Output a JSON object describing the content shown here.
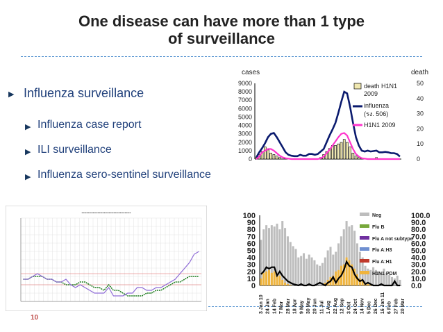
{
  "title": {
    "line1": "One disease can have more than 1 type",
    "line2": "of surveillance"
  },
  "bullets": [
    {
      "label": "Influenza surveillance",
      "level": 1
    },
    {
      "label": "Influenza case report",
      "level": 2
    },
    {
      "label": "ILI surveillance",
      "level": 2
    },
    {
      "label": "Influenza sero-sentinel surveillance",
      "level": 2
    }
  ],
  "page_number": "10",
  "colors": {
    "title": "#222222",
    "bullet_text": "#1f3f7a",
    "divider": "#4f8fcf",
    "page_number": "#c0504d"
  },
  "chart_data": [
    {
      "type": "bar",
      "left_axis_label": "cases",
      "right_axis_label": "death",
      "left_ticks": [
        "9000",
        "8000",
        "7000",
        "6000",
        "5000",
        "4000",
        "3000",
        "2000",
        "1000",
        "0"
      ],
      "right_ticks": [
        "50",
        "40",
        "30",
        "20",
        "10",
        "0"
      ],
      "ylim": [
        0,
        9000
      ],
      "y2lim": [
        0,
        50
      ],
      "legend": [
        {
          "label": "death H1N1 2009",
          "color": "#f0e8b0"
        },
        {
          "label": "influenza (รง. 506)",
          "color": "#0a1a6e"
        },
        {
          "label": "H1N1 2009",
          "color": "#ff33cc"
        }
      ],
      "influenza_cases": [
        200,
        800,
        1300,
        1900,
        2600,
        3000,
        3100,
        2600,
        2000,
        1400,
        800,
        500,
        400,
        350,
        350,
        500,
        400,
        400,
        600,
        600,
        500,
        600,
        900,
        1200,
        2000,
        2800,
        3500,
        4300,
        5500,
        6800,
        8000,
        7800,
        6200,
        4300,
        2600,
        1600,
        1000,
        900,
        1000,
        900,
        950,
        1000,
        800,
        800,
        850,
        800,
        700,
        700,
        600,
        300
      ],
      "h1n1_cases": [
        0,
        300,
        800,
        1000,
        1200,
        1200,
        1000,
        700,
        400,
        200,
        100,
        50,
        0,
        0,
        0,
        0,
        0,
        0,
        0,
        0,
        0,
        0,
        100,
        300,
        700,
        1100,
        1600,
        2100,
        2600,
        3000,
        3100,
        2800,
        2000,
        1200,
        600,
        300,
        100,
        50,
        0,
        0,
        0,
        0,
        0,
        0,
        0,
        0,
        0,
        0,
        0,
        0
      ],
      "deaths": [
        1,
        3,
        5,
        8,
        6,
        4,
        3,
        2,
        1,
        0,
        0,
        0,
        0,
        0,
        0,
        0,
        0,
        0,
        0,
        0,
        0,
        0,
        1,
        3,
        5,
        7,
        9,
        9,
        10,
        11,
        13,
        11,
        8,
        4,
        2,
        1,
        0,
        0,
        0,
        0,
        0,
        1,
        0,
        0,
        0,
        0,
        0,
        0,
        0,
        0
      ]
    },
    {
      "type": "line",
      "legend": [
        "Neg",
        "Flu B",
        "Flu A not subtype",
        "Flu A:H3",
        "Flu A:H1",
        "H1N1 PDM"
      ],
      "legend_colors": [
        "#bdbdbd",
        "#77a83b",
        "#7030a0",
        "#6f8fd0",
        "#c0392b",
        "#f0b43c"
      ],
      "left_ticks": [
        "100",
        "90",
        "80",
        "70",
        "60",
        "50",
        "40",
        "30",
        "20",
        "10",
        "0"
      ],
      "right_ticks": [
        "100.0",
        "90.0",
        "80.0",
        "70.0",
        "60.0",
        "50.0",
        "40.0",
        "30.0",
        "20.0",
        "10.0",
        "0.0"
      ],
      "ylim": [
        0,
        100
      ],
      "x_ticks": [
        "3 Jan 10",
        "24 Jan",
        "14 Feb",
        "7 Mar",
        "28 Mar",
        "18 Apr",
        "9 May",
        "30 May",
        "20 Jun",
        "11 Jul",
        "1 Aug",
        "22 Aug",
        "12 Sep",
        "3 Oct",
        "24 Oct",
        "14 Nov",
        "5 Dec",
        "26 Dec",
        "16 Jan 11",
        "6 Feb",
        "27 Feb",
        "20 Mar"
      ],
      "neg": [
        65,
        80,
        86,
        82,
        86,
        84,
        88,
        80,
        92,
        82,
        70,
        62,
        56,
        52,
        40,
        42,
        46,
        38,
        44,
        40,
        36,
        30,
        28,
        32,
        40,
        50,
        55,
        44,
        48,
        60,
        70,
        80,
        92,
        84,
        86,
        78,
        60,
        48,
        40,
        28,
        24,
        22,
        26,
        22,
        20,
        18,
        24,
        18,
        15,
        12,
        10,
        14,
        8
      ],
      "h1n1_pdm": [
        10,
        18,
        20,
        22,
        18,
        20,
        16,
        14,
        8,
        4,
        2,
        1,
        0,
        0,
        0,
        0,
        0,
        0,
        0,
        0,
        0,
        0,
        0,
        0,
        4,
        8,
        12,
        14,
        20,
        22,
        28,
        30,
        40,
        36,
        30,
        24,
        16,
        10,
        6,
        4,
        2,
        1,
        0,
        0,
        0,
        0,
        0,
        0,
        0,
        0,
        0,
        0,
        0
      ],
      "positive_rate": [
        16,
        20,
        26,
        24,
        26,
        26,
        14,
        20,
        14,
        10,
        6,
        4,
        2,
        1,
        0,
        2,
        0,
        0,
        2,
        0,
        0,
        2,
        4,
        2,
        0,
        4,
        6,
        12,
        4,
        10,
        14,
        22,
        34,
        28,
        26,
        16,
        10,
        6,
        8,
        2,
        4,
        2,
        0,
        0,
        0,
        2,
        0,
        0,
        0,
        0,
        6,
        0,
        0
      ]
    },
    {
      "type": "line",
      "series": [
        {
          "values": [
            8,
            8,
            9,
            9,
            9,
            8,
            8,
            7,
            7,
            6,
            6,
            6,
            7,
            7,
            6,
            5,
            5,
            4,
            6,
            4,
            4,
            3,
            2,
            2,
            2,
            2,
            3,
            3,
            4,
            4,
            5,
            6,
            7,
            7,
            8,
            9,
            9,
            9
          ]
        },
        {
          "values": [
            8,
            8,
            9,
            10,
            9,
            8,
            8,
            7,
            7,
            8,
            6,
            5,
            6,
            5,
            4,
            3,
            3,
            3,
            5,
            2,
            2,
            2,
            3,
            3,
            5,
            5,
            4,
            4,
            5,
            5,
            6,
            7,
            8,
            10,
            12,
            14,
            17,
            18
          ]
        }
      ],
      "ylim": [
        0,
        30
      ]
    }
  ]
}
